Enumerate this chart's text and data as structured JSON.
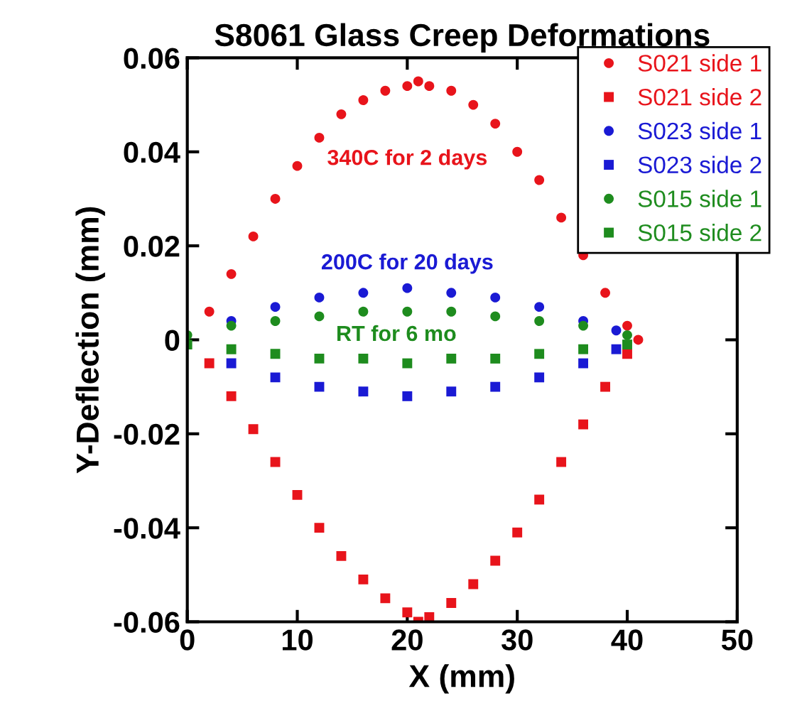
{
  "chart_data": {
    "type": "scatter",
    "title": "S8061 Glass Creep Deformations",
    "xlabel": "X (mm)",
    "ylabel": "Y-Deflection (mm)",
    "xlim": [
      0,
      50
    ],
    "xticks": [
      0,
      10,
      20,
      30,
      40,
      50
    ],
    "ylim": [
      -0.06,
      0.06
    ],
    "yticks": [
      -0.06,
      -0.04,
      -0.02,
      0,
      0.02,
      0.04,
      0.06
    ],
    "grid": false,
    "legend": "top right",
    "series": [
      {
        "name": "S021 side 1",
        "color": "#e8141b",
        "marker": "circle",
        "x": [
          2,
          4,
          6,
          8,
          10,
          12,
          14,
          16,
          18,
          20,
          21,
          22,
          24,
          26,
          28,
          30,
          32,
          34,
          36,
          38,
          40,
          41
        ],
        "values": [
          0.006,
          0.014,
          0.022,
          0.03,
          0.037,
          0.043,
          0.048,
          0.051,
          0.053,
          0.054,
          0.055,
          0.054,
          0.053,
          0.05,
          0.046,
          0.04,
          0.034,
          0.026,
          0.018,
          0.01,
          0.003,
          0
        ]
      },
      {
        "name": "S021 side 2",
        "color": "#e8141b",
        "marker": "square",
        "x": [
          2,
          4,
          6,
          8,
          10,
          12,
          14,
          16,
          18,
          20,
          21,
          22,
          24,
          26,
          28,
          30,
          32,
          34,
          36,
          38,
          40
        ],
        "values": [
          -0.005,
          -0.012,
          -0.019,
          -0.026,
          -0.033,
          -0.04,
          -0.046,
          -0.051,
          -0.055,
          -0.058,
          -0.06,
          -0.059,
          -0.056,
          -0.052,
          -0.047,
          -0.041,
          -0.034,
          -0.026,
          -0.018,
          -0.01,
          -0.003
        ]
      },
      {
        "name": "S023 side 1",
        "color": "#1a1ad4",
        "marker": "circle",
        "x": [
          4,
          8,
          12,
          16,
          20,
          24,
          28,
          32,
          36,
          39
        ],
        "values": [
          0.004,
          0.007,
          0.009,
          0.01,
          0.011,
          0.01,
          0.009,
          0.007,
          0.004,
          0.002
        ]
      },
      {
        "name": "S023 side 2",
        "color": "#1a1ad4",
        "marker": "square",
        "x": [
          4,
          8,
          12,
          16,
          20,
          24,
          28,
          32,
          36,
          39
        ],
        "values": [
          -0.005,
          -0.008,
          -0.01,
          -0.011,
          -0.012,
          -0.011,
          -0.01,
          -0.008,
          -0.005,
          -0.002
        ]
      },
      {
        "name": "S015 side 1",
        "color": "#1e8c1e",
        "marker": "circle",
        "x": [
          0,
          4,
          8,
          12,
          16,
          20,
          24,
          28,
          32,
          36,
          40
        ],
        "values": [
          0.001,
          0.003,
          0.004,
          0.005,
          0.006,
          0.006,
          0.006,
          0.005,
          0.004,
          0.003,
          0.001
        ]
      },
      {
        "name": "S015 side 2",
        "color": "#1e8c1e",
        "marker": "square",
        "x": [
          0,
          4,
          8,
          12,
          16,
          20,
          24,
          28,
          32,
          36,
          40
        ],
        "values": [
          -0.001,
          -0.002,
          -0.003,
          -0.004,
          -0.004,
          -0.005,
          -0.004,
          -0.004,
          -0.003,
          -0.002,
          -0.001
        ]
      }
    ],
    "annotations": [
      "340C for 2 days",
      "200C for 20 days",
      "RT for 6 mo"
    ]
  }
}
